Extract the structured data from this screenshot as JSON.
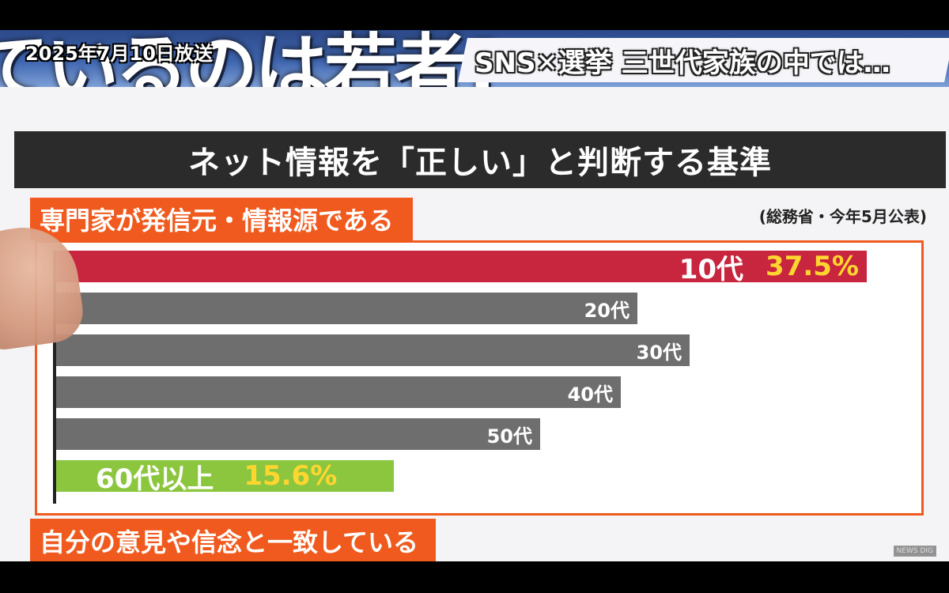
{
  "broadcast_date": "2025年7月10日放送",
  "banner": {
    "background_text": "ているのは若者?",
    "title": "SNS✕選挙 三世代家族の中では…"
  },
  "main_title": "ネット情報を「正しい」と判断する基準",
  "category_label": "専門家が発信元・情報源である",
  "source_note": "(総務省・今年5月公表)",
  "next_category_label": "自分の意見や信念と一致している",
  "watermark": "NEWS DIG",
  "colors": {
    "highlight_top": "#c8253f",
    "highlight_bottom": "#8cc63e",
    "bar_gray": "#6e6e6e",
    "accent_orange": "#f05a1e",
    "value_yellow": "#ffd630"
  },
  "chart_data": {
    "type": "bar",
    "orientation": "horizontal",
    "title": "ネット情報を「正しい」と判断する基準",
    "subtitle": "専門家が発信元・情報源である",
    "categories": [
      "10代",
      "20代",
      "30代",
      "40代",
      "50代",
      "60代以上"
    ],
    "values": [
      37.5,
      26.9,
      29.3,
      26.1,
      22.4,
      15.6
    ],
    "value_labels": [
      "37.5%",
      "",
      "",
      "",
      "",
      "15.6%"
    ],
    "unit": "%",
    "xlim": [
      0,
      39.5
    ],
    "grid": false,
    "legend": "none"
  }
}
